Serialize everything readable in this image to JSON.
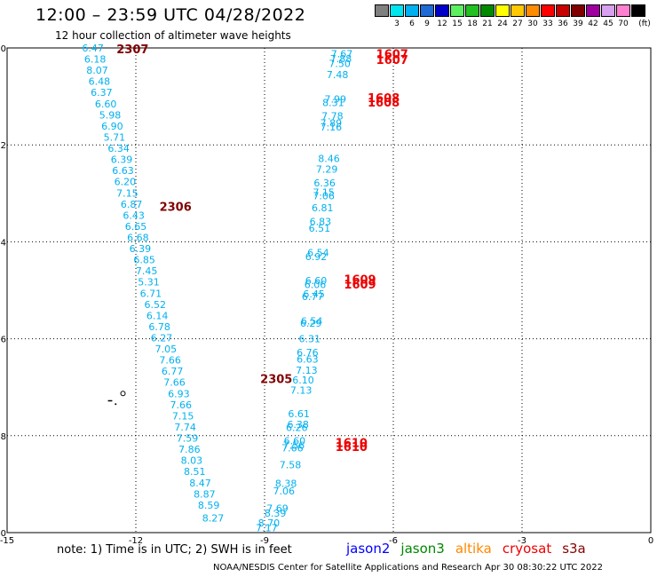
{
  "title": "12:00 – 23:59 UTC 04/28/2022",
  "subtitle": "12 hour collection of altimeter wave heights",
  "legend": {
    "unit": "(ft)",
    "bins": [
      {
        "label": "",
        "color": "#808080"
      },
      {
        "label": "3",
        "color": "#00e5ee"
      },
      {
        "label": "6",
        "color": "#00b0f0"
      },
      {
        "label": "9",
        "color": "#1e6bd6"
      },
      {
        "label": "12",
        "color": "#0000c8"
      },
      {
        "label": "15",
        "color": "#5cf060"
      },
      {
        "label": "18",
        "color": "#22c020"
      },
      {
        "label": "21",
        "color": "#008a00"
      },
      {
        "label": "24",
        "color": "#ffff00"
      },
      {
        "label": "27",
        "color": "#ffc800"
      },
      {
        "label": "30",
        "color": "#ff8c00"
      },
      {
        "label": "33",
        "color": "#ff0000"
      },
      {
        "label": "36",
        "color": "#c80000"
      },
      {
        "label": "39",
        "color": "#800000"
      },
      {
        "label": "42",
        "color": "#a000a0"
      },
      {
        "label": "45",
        "color": "#d8a0f0"
      },
      {
        "label": "70",
        "color": "#ff80d0"
      },
      {
        "label": "",
        "color": "#000000"
      }
    ]
  },
  "note": "note: 1) Time is in UTC; 2) SWH is in feet",
  "missions": [
    {
      "name": "jason2",
      "color": "#0000ff"
    },
    {
      "name": "jason3",
      "color": "#008800"
    },
    {
      "name": "altika",
      "color": "#ff8800"
    },
    {
      "name": "cryosat",
      "color": "#ee0000"
    },
    {
      "name": "s3a",
      "color": "#880000"
    }
  ],
  "footer": "NOAA/NESDIS Center for Satellite Applications and Research   Apr 30 08:30:22 UTC 2022",
  "chart_data": {
    "type": "scatter",
    "xlim": [
      -15,
      0
    ],
    "ylim": [
      -40,
      -30
    ],
    "x_ticks": [
      -15,
      -12,
      -9,
      -6,
      -3,
      0
    ],
    "y_ticks": [
      -30,
      -32,
      -34,
      -36,
      -38,
      -40
    ],
    "grid": true,
    "point_color": "#00b0f0",
    "series": [
      {
        "name": "track-west",
        "points": [
          {
            "x": -13.0,
            "y": -30.0,
            "v": "6.47"
          },
          {
            "x": -12.95,
            "y": -30.23,
            "v": "6.18"
          },
          {
            "x": -12.9,
            "y": -30.46,
            "v": "8.07"
          },
          {
            "x": -12.85,
            "y": -30.69,
            "v": "6.48"
          },
          {
            "x": -12.8,
            "y": -30.92,
            "v": "6.37"
          },
          {
            "x": -12.7,
            "y": -31.15,
            "v": "6.60"
          },
          {
            "x": -12.6,
            "y": -31.38,
            "v": "5.98"
          },
          {
            "x": -12.55,
            "y": -31.61,
            "v": "6.90"
          },
          {
            "x": -12.5,
            "y": -31.84,
            "v": "5.71"
          },
          {
            "x": -12.4,
            "y": -32.07,
            "v": "6.34"
          },
          {
            "x": -12.33,
            "y": -32.3,
            "v": "6.39"
          },
          {
            "x": -12.3,
            "y": -32.53,
            "v": "6.63"
          },
          {
            "x": -12.25,
            "y": -32.76,
            "v": "6.20"
          },
          {
            "x": -12.2,
            "y": -32.99,
            "v": "7.15"
          },
          {
            "x": -12.1,
            "y": -33.22,
            "v": "6.87"
          },
          {
            "x": -12.05,
            "y": -33.45,
            "v": "6.43"
          },
          {
            "x": -12.0,
            "y": -33.68,
            "v": "6.65"
          },
          {
            "x": -11.95,
            "y": -33.91,
            "v": "6.68"
          },
          {
            "x": -11.9,
            "y": -34.14,
            "v": "6.39"
          },
          {
            "x": -11.8,
            "y": -34.37,
            "v": "6.85"
          },
          {
            "x": -11.75,
            "y": -34.6,
            "v": "7.45"
          },
          {
            "x": -11.7,
            "y": -34.83,
            "v": "5.31"
          },
          {
            "x": -11.65,
            "y": -35.06,
            "v": "6.71"
          },
          {
            "x": -11.55,
            "y": -35.29,
            "v": "6.52"
          },
          {
            "x": -11.5,
            "y": -35.52,
            "v": "6.14"
          },
          {
            "x": -11.45,
            "y": -35.75,
            "v": "6.78"
          },
          {
            "x": -11.4,
            "y": -35.98,
            "v": "6.27"
          },
          {
            "x": -11.3,
            "y": -36.21,
            "v": "7.05"
          },
          {
            "x": -11.2,
            "y": -36.44,
            "v": "7.66"
          },
          {
            "x": -11.15,
            "y": -36.67,
            "v": "6.77"
          },
          {
            "x": -11.1,
            "y": -36.9,
            "v": "7.66"
          },
          {
            "x": -11.0,
            "y": -37.13,
            "v": "6.93"
          },
          {
            "x": -10.95,
            "y": -37.36,
            "v": "7.66"
          },
          {
            "x": -10.9,
            "y": -37.59,
            "v": "7.15"
          },
          {
            "x": -10.85,
            "y": -37.82,
            "v": "7.74"
          },
          {
            "x": -10.8,
            "y": -38.05,
            "v": "7.59"
          },
          {
            "x": -10.75,
            "y": -38.28,
            "v": "7.86"
          },
          {
            "x": -10.7,
            "y": -38.51,
            "v": "8.03"
          },
          {
            "x": -10.63,
            "y": -38.74,
            "v": "8.51"
          },
          {
            "x": -10.5,
            "y": -38.97,
            "v": "8.47"
          },
          {
            "x": -10.4,
            "y": -39.2,
            "v": "8.87"
          },
          {
            "x": -10.3,
            "y": -39.43,
            "v": "8.59"
          },
          {
            "x": -10.2,
            "y": -39.7,
            "v": "8.27"
          }
        ]
      },
      {
        "name": "track-east",
        "points": [
          {
            "x": -7.2,
            "y": -30.12,
            "v": "7.67"
          },
          {
            "x": -7.22,
            "y": -30.22,
            "v": "7.88"
          },
          {
            "x": -7.25,
            "y": -30.32,
            "v": "7.50"
          },
          {
            "x": -7.3,
            "y": -30.55,
            "v": "7.48"
          },
          {
            "x": -7.35,
            "y": -31.05,
            "v": "7.99"
          },
          {
            "x": -7.4,
            "y": -31.13,
            "v": "8.31"
          },
          {
            "x": -7.42,
            "y": -31.4,
            "v": "7.78"
          },
          {
            "x": -7.45,
            "y": -31.55,
            "v": "7.89"
          },
          {
            "x": -7.45,
            "y": -31.63,
            "v": "7.16"
          },
          {
            "x": -7.5,
            "y": -32.28,
            "v": "8.46"
          },
          {
            "x": -7.55,
            "y": -32.5,
            "v": "7.29"
          },
          {
            "x": -7.6,
            "y": -32.78,
            "v": "6.36"
          },
          {
            "x": -7.62,
            "y": -32.98,
            "v": "7.15"
          },
          {
            "x": -7.62,
            "y": -33.05,
            "v": "7.06"
          },
          {
            "x": -7.65,
            "y": -33.3,
            "v": "6.81"
          },
          {
            "x": -7.7,
            "y": -33.58,
            "v": "6.83"
          },
          {
            "x": -7.72,
            "y": -33.72,
            "v": "6.51"
          },
          {
            "x": -7.75,
            "y": -34.22,
            "v": "6.54"
          },
          {
            "x": -7.8,
            "y": -34.3,
            "v": "6.92"
          },
          {
            "x": -7.8,
            "y": -34.8,
            "v": "6.60"
          },
          {
            "x": -7.82,
            "y": -34.88,
            "v": "6.06"
          },
          {
            "x": -7.85,
            "y": -35.07,
            "v": "6.45"
          },
          {
            "x": -7.88,
            "y": -35.13,
            "v": "6.77"
          },
          {
            "x": -7.9,
            "y": -35.63,
            "v": "6.54"
          },
          {
            "x": -7.92,
            "y": -35.68,
            "v": "6.29"
          },
          {
            "x": -7.95,
            "y": -36.0,
            "v": "6.31"
          },
          {
            "x": -8.0,
            "y": -36.28,
            "v": "6.76"
          },
          {
            "x": -8.0,
            "y": -36.42,
            "v": "6.63"
          },
          {
            "x": -8.02,
            "y": -36.65,
            "v": "7.13"
          },
          {
            "x": -8.1,
            "y": -36.85,
            "v": "6.10"
          },
          {
            "x": -8.15,
            "y": -37.06,
            "v": "7.13"
          },
          {
            "x": -8.2,
            "y": -37.55,
            "v": "6.61"
          },
          {
            "x": -8.22,
            "y": -37.77,
            "v": "6.38"
          },
          {
            "x": -8.25,
            "y": -37.83,
            "v": "6.26"
          },
          {
            "x": -8.3,
            "y": -38.1,
            "v": "6.60"
          },
          {
            "x": -8.32,
            "y": -38.2,
            "v": "7.56"
          },
          {
            "x": -8.35,
            "y": -38.25,
            "v": "7.66"
          },
          {
            "x": -8.4,
            "y": -38.6,
            "v": "7.58"
          },
          {
            "x": -8.5,
            "y": -38.98,
            "v": "8.38"
          },
          {
            "x": -8.55,
            "y": -39.14,
            "v": "7.06"
          },
          {
            "x": -8.7,
            "y": -39.5,
            "v": "7.69"
          },
          {
            "x": -8.75,
            "y": -39.6,
            "v": "8.39"
          },
          {
            "x": -8.9,
            "y": -39.8,
            "v": "8.70"
          },
          {
            "x": -8.95,
            "y": -39.9,
            "v": "7.17"
          }
        ]
      }
    ],
    "time_labels": [
      {
        "x": -12.45,
        "y": -30.02,
        "text": "2307",
        "color": "#800000"
      },
      {
        "x": -11.45,
        "y": -33.27,
        "text": "2306",
        "color": "#800000"
      },
      {
        "x": -9.1,
        "y": -36.82,
        "text": "2305",
        "color": "#800000"
      },
      {
        "x": -6.4,
        "y": -30.12,
        "text": "1607",
        "color": "#ee0000"
      },
      {
        "x": -6.4,
        "y": -30.24,
        "text": "1607",
        "color": "#ee0000"
      },
      {
        "x": -6.6,
        "y": -31.03,
        "text": "1608",
        "color": "#ee0000"
      },
      {
        "x": -6.6,
        "y": -31.12,
        "text": "1608",
        "color": "#ee0000"
      },
      {
        "x": -7.15,
        "y": -34.77,
        "text": "1609",
        "color": "#ee0000"
      },
      {
        "x": -7.15,
        "y": -34.87,
        "text": "1609",
        "color": "#ee0000"
      },
      {
        "x": -7.35,
        "y": -38.14,
        "text": "1610",
        "color": "#ee0000"
      },
      {
        "x": -7.35,
        "y": -38.22,
        "text": "1610",
        "color": "#ee0000"
      }
    ]
  }
}
